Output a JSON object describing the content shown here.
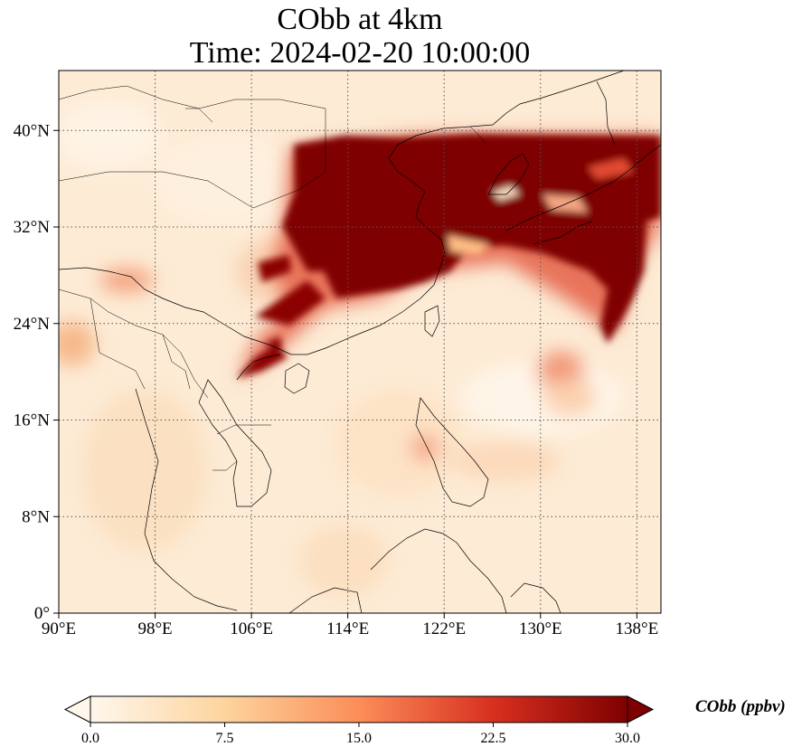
{
  "title": {
    "line1": "CObb at 4km",
    "line2": "Time: 2024-02-20 10:00:00"
  },
  "map": {
    "lon_range": [
      90,
      140
    ],
    "lat_range": [
      0,
      40
    ],
    "xtick_labels": [
      "90°E",
      "98°E",
      "106°E",
      "114°E",
      "122°E",
      "130°E",
      "138°E"
    ],
    "ytick_labels": [
      "0°",
      "8°N",
      "16°N",
      "24°N",
      "32°N",
      "40°N"
    ],
    "gridlines": "dotted",
    "coastlines": true,
    "borders": true
  },
  "colorbar": {
    "label": "CObb (ppbv)",
    "colormap": "OrRd",
    "ticks": [
      "0.0",
      "7.5",
      "15.0",
      "22.5",
      "30.0"
    ],
    "min": 0,
    "max": 30,
    "extend": "both",
    "colors": [
      "#fff7ec",
      "#fdd49e",
      "#fc8d59",
      "#d7301f",
      "#7f0000"
    ]
  }
}
